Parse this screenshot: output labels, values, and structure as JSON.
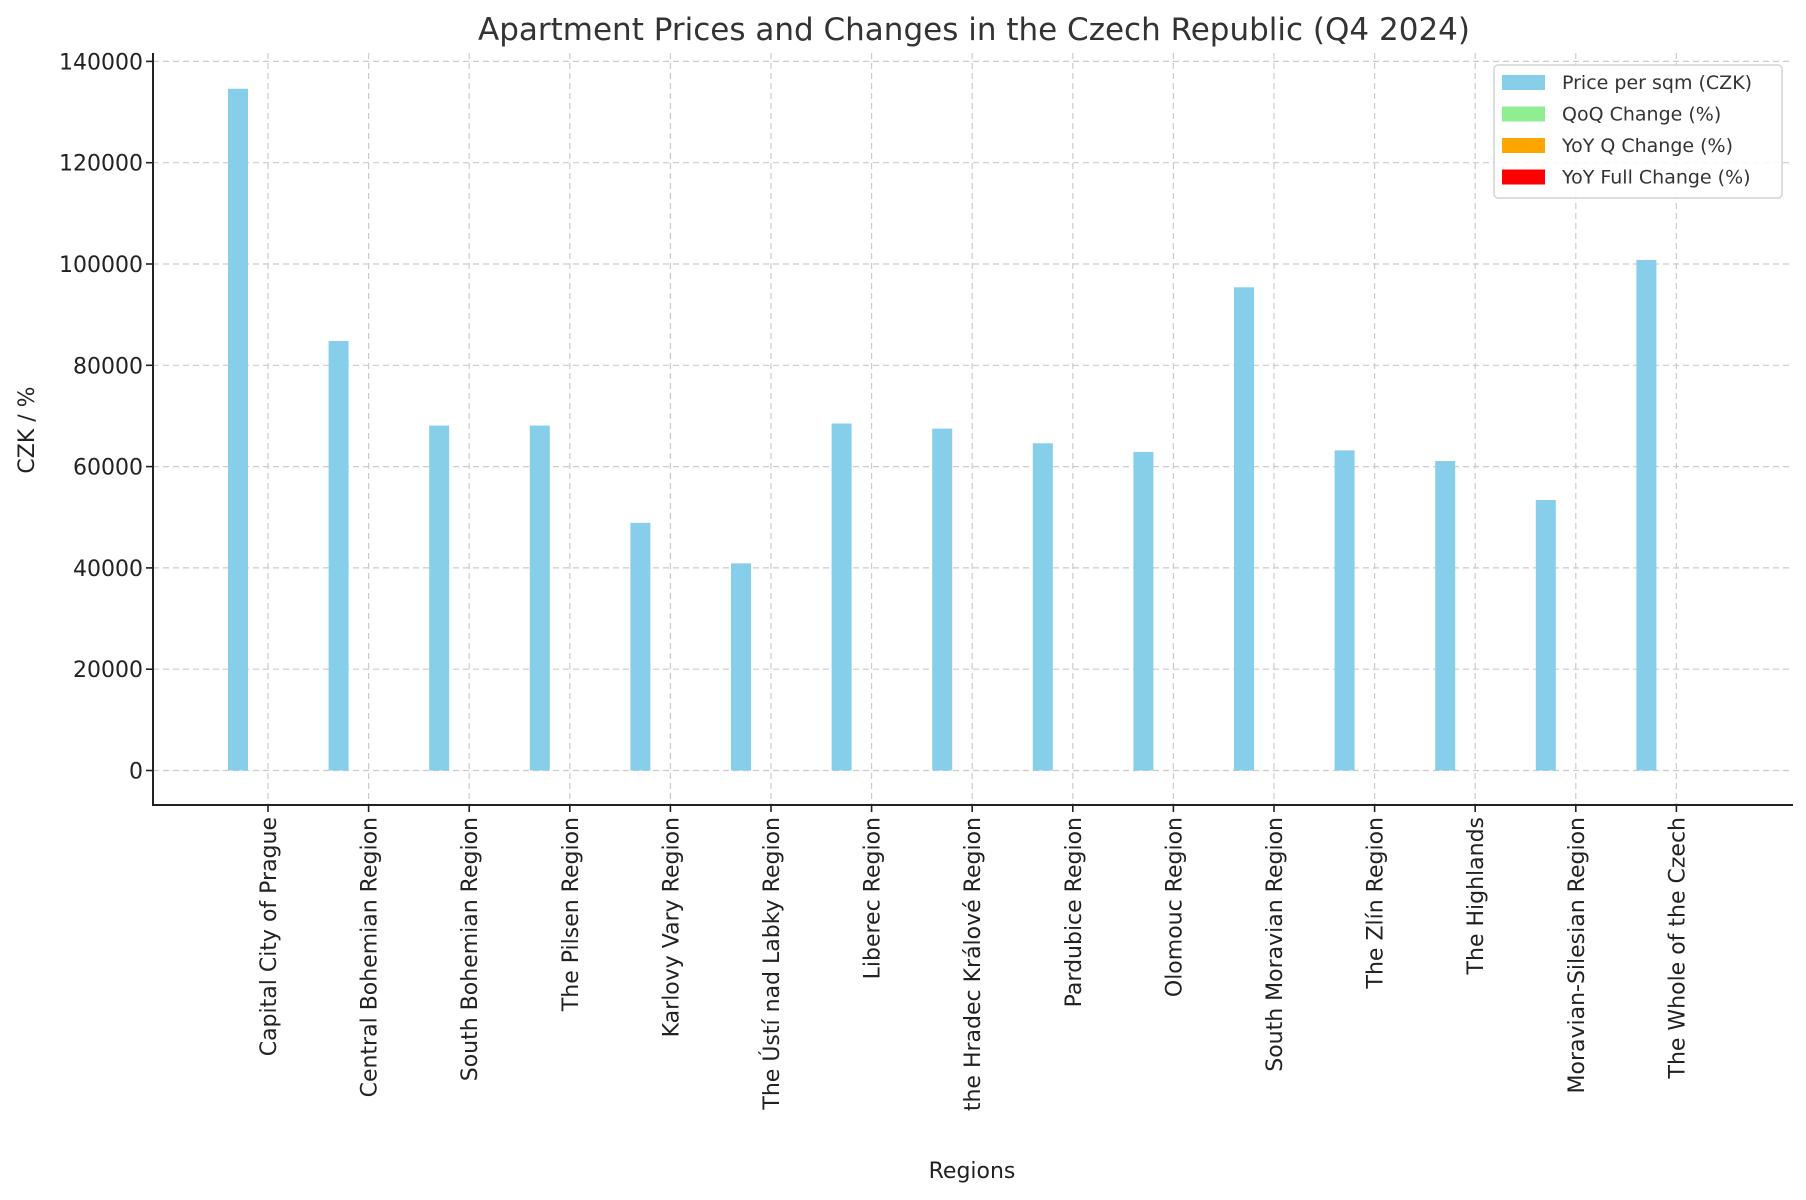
{
  "chart_data": {
    "type": "bar",
    "title": "Apartment Prices and Changes in the Czech Republic (Q4 2024)",
    "xlabel": "Regions",
    "ylabel": "CZK / %",
    "ylim": [
      0,
      140000
    ],
    "yticks": [
      "0",
      "20000",
      "40000",
      "60000",
      "80000",
      "100000",
      "120000",
      "140000"
    ],
    "ytick_values": [
      0,
      20000,
      40000,
      60000,
      80000,
      100000,
      120000,
      140000
    ],
    "grid": true,
    "legend_position": "top-right",
    "categories": [
      "Capital City of Prague",
      "Central Bohemian Region",
      "South Bohemian Region",
      "The Pilsen Region",
      "Karlovy Vary Region",
      "The Ústí nad Labky Region",
      "Liberec Region",
      "the Hradec Králové Region",
      "Pardubice Region",
      "Olomouc Region",
      "South Moravian Region",
      "The Zlín Region",
      "The Highlands",
      "Moravian-Silesian Region",
      "The Whole of the Czech"
    ],
    "series": [
      {
        "name": "Price per sqm (CZK)",
        "color": "#87ceeb",
        "values": [
          134600,
          84800,
          68100,
          68100,
          48900,
          40900,
          68500,
          67500,
          64600,
          62900,
          95400,
          63200,
          61100,
          53400,
          100800
        ]
      },
      {
        "name": "QoQ Change (%)",
        "color": "#90ee90"
      },
      {
        "name": "YoY Q Change (%)",
        "color": "#ffa500"
      },
      {
        "name": "YoY Full Change (%)",
        "color": "#ff0000"
      }
    ]
  }
}
